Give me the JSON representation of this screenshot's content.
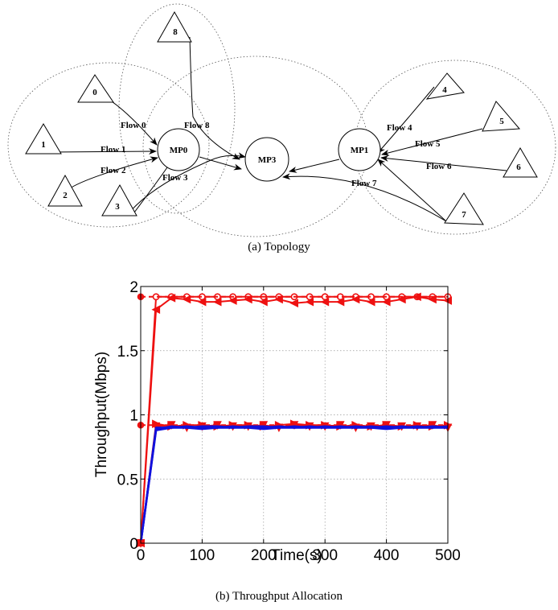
{
  "topology": {
    "relays": [
      "MP0",
      "MP1",
      "MP3"
    ],
    "sources": [
      "0",
      "1",
      "2",
      "3",
      "4",
      "5",
      "6",
      "7",
      "8"
    ],
    "flows": [
      "Flow 0",
      "Flow 1",
      "Flow 2",
      "Flow 3",
      "Flow 4",
      "Flow 5",
      "Flow 6",
      "Flow 7",
      "Flow 8"
    ],
    "caption": "(a)  Topology"
  },
  "chart_data": {
    "type": "line",
    "xlabel": "Time(s)",
    "ylabel": "Throughput(Mbps)",
    "xlim": [
      0,
      500
    ],
    "ylim": [
      0,
      2
    ],
    "xticks": [
      "0",
      "100",
      "200",
      "300",
      "400",
      "500"
    ],
    "yticks": [
      "0",
      "0.5",
      "1",
      "1.5",
      "2"
    ],
    "grid": true,
    "legend": "none",
    "colors": {
      "red": "#ee1111",
      "blue": "#1111dd"
    },
    "x": [
      0,
      25,
      50,
      75,
      100,
      125,
      150,
      175,
      200,
      225,
      250,
      275,
      300,
      325,
      350,
      375,
      400,
      425,
      450,
      475,
      500
    ],
    "series": [
      {
        "color": "#ee1111",
        "style": "solid",
        "marker": "circle",
        "values": [
          0,
          1.92,
          1.92,
          1.92,
          1.92,
          1.92,
          1.92,
          1.92,
          1.92,
          1.92,
          1.92,
          1.92,
          1.92,
          1.92,
          1.92,
          1.92,
          1.92,
          1.92,
          1.92,
          1.92,
          1.92
        ]
      },
      {
        "color": "#ee1111",
        "style": "dashed",
        "marker": "none",
        "values": [
          1.92,
          1.92,
          1.92,
          1.92,
          1.92,
          1.92,
          1.92,
          1.92,
          1.92,
          1.92,
          1.92,
          1.92,
          1.92,
          1.92,
          1.92,
          1.92,
          1.92,
          1.92,
          1.92,
          1.92,
          1.92
        ]
      },
      {
        "color": "#ee1111",
        "style": "solid",
        "marker": "triangle-left",
        "values": [
          0,
          1.82,
          1.91,
          1.9,
          1.88,
          1.88,
          1.89,
          1.9,
          1.88,
          1.9,
          1.87,
          1.88,
          1.88,
          1.88,
          1.9,
          1.88,
          1.88,
          1.9,
          1.92,
          1.9,
          1.89
        ]
      },
      {
        "color": "#ee1111",
        "style": "dashed",
        "marker": "none",
        "values": [
          0.92,
          0.92,
          0.92,
          0.92,
          0.92,
          0.92,
          0.92,
          0.92,
          0.92,
          0.92,
          0.92,
          0.92,
          0.92,
          0.92,
          0.92,
          0.92,
          0.92,
          0.92,
          0.92,
          0.92,
          0.92
        ]
      },
      {
        "color": "#ee1111",
        "style": "solid",
        "marker": "triangle-right",
        "values": [
          0,
          0.93,
          0.91,
          0.92,
          0.92,
          0.91,
          0.92,
          0.92,
          0.91,
          0.92,
          0.93,
          0.92,
          0.92,
          0.91,
          0.92,
          0.91,
          0.92,
          0.91,
          0.92,
          0.91,
          0.92
        ]
      },
      {
        "color": "#ee1111",
        "style": "solid",
        "marker": "triangle-down",
        "values": [
          0,
          0.91,
          0.92,
          0.9,
          0.91,
          0.92,
          0.91,
          0.91,
          0.92,
          0.9,
          0.92,
          0.91,
          0.91,
          0.92,
          0.9,
          0.91,
          0.92,
          0.91,
          0.91,
          0.92,
          0.9
        ]
      },
      {
        "color": "#1111dd",
        "style": "solid",
        "marker": "none",
        "values": [
          0,
          0.88,
          0.9,
          0.91,
          0.9,
          0.9,
          0.91,
          0.9,
          0.9,
          0.91,
          0.9,
          0.91,
          0.9,
          0.91,
          0.9,
          0.91,
          0.9,
          0.91,
          0.9,
          0.91,
          0.9
        ]
      },
      {
        "color": "#1111dd",
        "style": "solid",
        "marker": "none",
        "values": [
          0,
          0.89,
          0.91,
          0.9,
          0.91,
          0.91,
          0.9,
          0.91,
          0.91,
          0.9,
          0.91,
          0.9,
          0.91,
          0.9,
          0.91,
          0.9,
          0.91,
          0.9,
          0.91,
          0.9,
          0.91
        ]
      },
      {
        "color": "#1111dd",
        "style": "solid",
        "marker": "none",
        "values": [
          0,
          0.9,
          0.9,
          0.9,
          0.89,
          0.9,
          0.9,
          0.9,
          0.89,
          0.9,
          0.9,
          0.9,
          0.9,
          0.9,
          0.9,
          0.9,
          0.89,
          0.9,
          0.9,
          0.9,
          0.9
        ]
      }
    ],
    "caption": "(b)  Throughput Allocation"
  }
}
